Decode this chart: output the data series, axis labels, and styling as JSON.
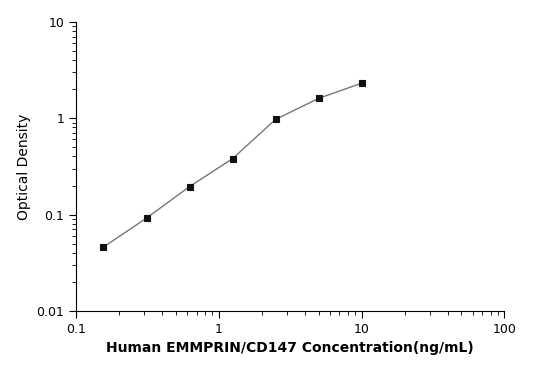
{
  "x_values": [
    0.156,
    0.3125,
    0.625,
    1.25,
    2.5,
    5,
    10
  ],
  "y_values": [
    0.046,
    0.092,
    0.195,
    0.38,
    0.97,
    1.6,
    2.3
  ],
  "x_label": "Human EMMPRIN/CD147 Concentration(ng/mL)",
  "y_label": "Optical Density",
  "x_lim": [
    0.1,
    100
  ],
  "y_lim": [
    0.01,
    10
  ],
  "x_ticks": [
    0.1,
    1,
    10,
    100
  ],
  "y_ticks": [
    0.01,
    0.1,
    1,
    10
  ],
  "line_color": "#777777",
  "marker_color": "#111111",
  "marker": "s",
  "marker_size": 5,
  "line_width": 1.0,
  "background_color": "#ffffff",
  "label_fontsize": 10,
  "tick_fontsize": 9
}
